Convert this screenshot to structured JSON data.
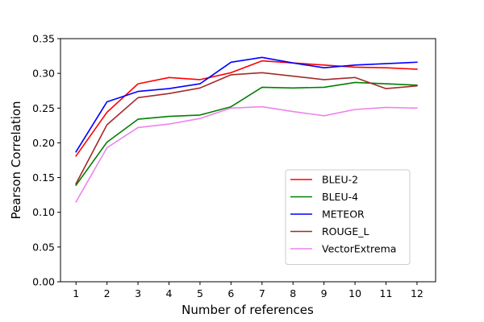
{
  "chart_data": {
    "type": "line",
    "title": "",
    "xlabel": "Number of references",
    "ylabel": "Pearson Correlation",
    "x": [
      1,
      2,
      3,
      4,
      5,
      6,
      7,
      8,
      9,
      10,
      11,
      12
    ],
    "xticks": [
      "1",
      "2",
      "3",
      "4",
      "5",
      "6",
      "7",
      "8",
      "9",
      "10",
      "11",
      "12"
    ],
    "xlim": [
      0.5,
      12.6
    ],
    "ylim": [
      0.0,
      0.35
    ],
    "yticks": [
      "0.00",
      "0.05",
      "0.10",
      "0.15",
      "0.20",
      "0.25",
      "0.30",
      "0.35"
    ],
    "grid": false,
    "legend_position": "lower-right",
    "series": [
      {
        "name": "BLEU-2",
        "color": "#ff0000",
        "values": [
          0.181,
          0.244,
          0.285,
          0.294,
          0.291,
          0.301,
          0.318,
          0.315,
          0.312,
          0.309,
          0.308,
          0.306
        ]
      },
      {
        "name": "BLEU-4",
        "color": "#008000",
        "values": [
          0.139,
          0.201,
          0.234,
          0.238,
          0.24,
          0.252,
          0.28,
          0.279,
          0.28,
          0.287,
          0.285,
          0.283
        ]
      },
      {
        "name": "METEOR",
        "color": "#0000ff",
        "values": [
          0.187,
          0.259,
          0.274,
          0.278,
          0.285,
          0.316,
          0.323,
          0.315,
          0.308,
          0.312,
          0.314,
          0.316
        ]
      },
      {
        "name": "ROUGE_L",
        "color": "#a52a2a",
        "values": [
          0.141,
          0.226,
          0.265,
          0.271,
          0.279,
          0.298,
          0.301,
          0.296,
          0.291,
          0.294,
          0.278,
          0.282
        ]
      },
      {
        "name": "VectorExtrema",
        "color": "#ee82ee",
        "values": [
          0.115,
          0.193,
          0.222,
          0.227,
          0.235,
          0.25,
          0.252,
          0.245,
          0.239,
          0.248,
          0.251,
          0.25
        ]
      }
    ]
  }
}
